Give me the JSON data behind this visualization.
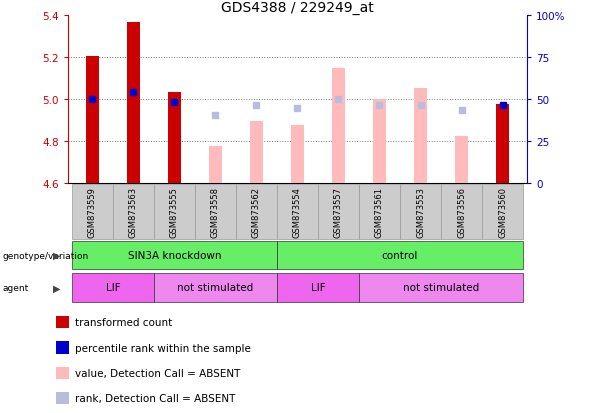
{
  "title": "GDS4388 / 229249_at",
  "samples": [
    "GSM873559",
    "GSM873563",
    "GSM873555",
    "GSM873558",
    "GSM873562",
    "GSM873554",
    "GSM873557",
    "GSM873561",
    "GSM873553",
    "GSM873556",
    "GSM873560"
  ],
  "red_bars": [
    5.205,
    5.365,
    5.035,
    null,
    null,
    null,
    null,
    null,
    null,
    null,
    4.975
  ],
  "blue_squares": [
    5.0,
    5.035,
    4.985,
    null,
    null,
    null,
    null,
    null,
    null,
    null,
    4.97
  ],
  "pink_bars": [
    null,
    null,
    null,
    4.775,
    4.895,
    4.875,
    5.145,
    5.0,
    5.05,
    4.825,
    null
  ],
  "lavender_squares": [
    null,
    null,
    null,
    4.925,
    4.97,
    4.955,
    5.0,
    4.97,
    4.97,
    4.95,
    null
  ],
  "ylim": [
    4.6,
    5.4
  ],
  "yticks_left": [
    4.6,
    4.8,
    5.0,
    5.2,
    5.4
  ],
  "yticks_right": [
    0,
    25,
    50,
    75,
    100
  ],
  "ytick_labels_right": [
    "0",
    "25",
    "50",
    "75",
    "100%"
  ],
  "red_color": "#cc0000",
  "blue_color": "#0000cc",
  "pink_color": "#ffbbbb",
  "lavender_color": "#bbbbdd",
  "green_color": "#66ee66",
  "magenta_color": "#ee66ee",
  "magenta_light_color": "#ee88ee",
  "sample_bg": "#cccccc",
  "legend_items": [
    {
      "label": "transformed count",
      "color": "#cc0000"
    },
    {
      "label": "percentile rank within the sample",
      "color": "#0000cc"
    },
    {
      "label": "value, Detection Call = ABSENT",
      "color": "#ffbbbb"
    },
    {
      "label": "rank, Detection Call = ABSENT",
      "color": "#bbbbdd"
    }
  ]
}
